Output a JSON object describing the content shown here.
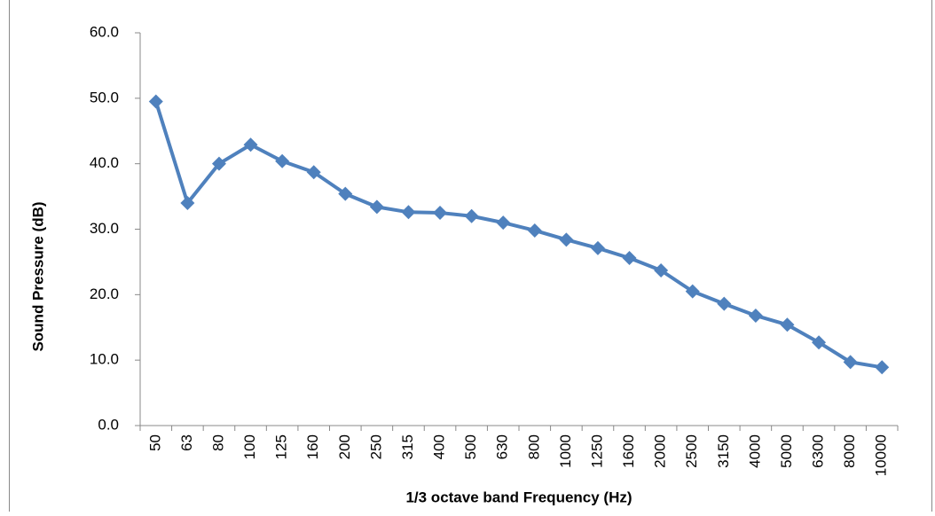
{
  "chart_data": {
    "type": "line",
    "x_label": "1/3 octave band Frequency (Hz)",
    "y_label": "Sound Pressure (dB)",
    "categories": [
      "50",
      "63",
      "80",
      "100",
      "125",
      "160",
      "200",
      "250",
      "315",
      "400",
      "500",
      "630",
      "800",
      "1000",
      "1250",
      "1600",
      "2000",
      "2500",
      "3150",
      "4000",
      "5000",
      "6300",
      "8000",
      "10000"
    ],
    "series": [
      {
        "color": "#4f81bd",
        "values": [
          49.5,
          34.0,
          40.0,
          42.9,
          40.4,
          38.7,
          35.4,
          33.4,
          32.6,
          32.5,
          32.0,
          31.0,
          29.8,
          28.4,
          27.1,
          25.6,
          23.7,
          20.5,
          18.6,
          16.8,
          15.4,
          12.7,
          9.7,
          8.9
        ]
      }
    ],
    "ylim": [
      0,
      60
    ],
    "yticks": [
      {
        "value": 0,
        "label": "0.0"
      },
      {
        "value": 10,
        "label": "10.0"
      },
      {
        "value": 20,
        "label": "20.0"
      },
      {
        "value": 30,
        "label": "30.0"
      },
      {
        "value": 40,
        "label": "40.0"
      },
      {
        "value": 50,
        "label": "50.0"
      },
      {
        "value": 60,
        "label": "60.0"
      }
    ]
  }
}
